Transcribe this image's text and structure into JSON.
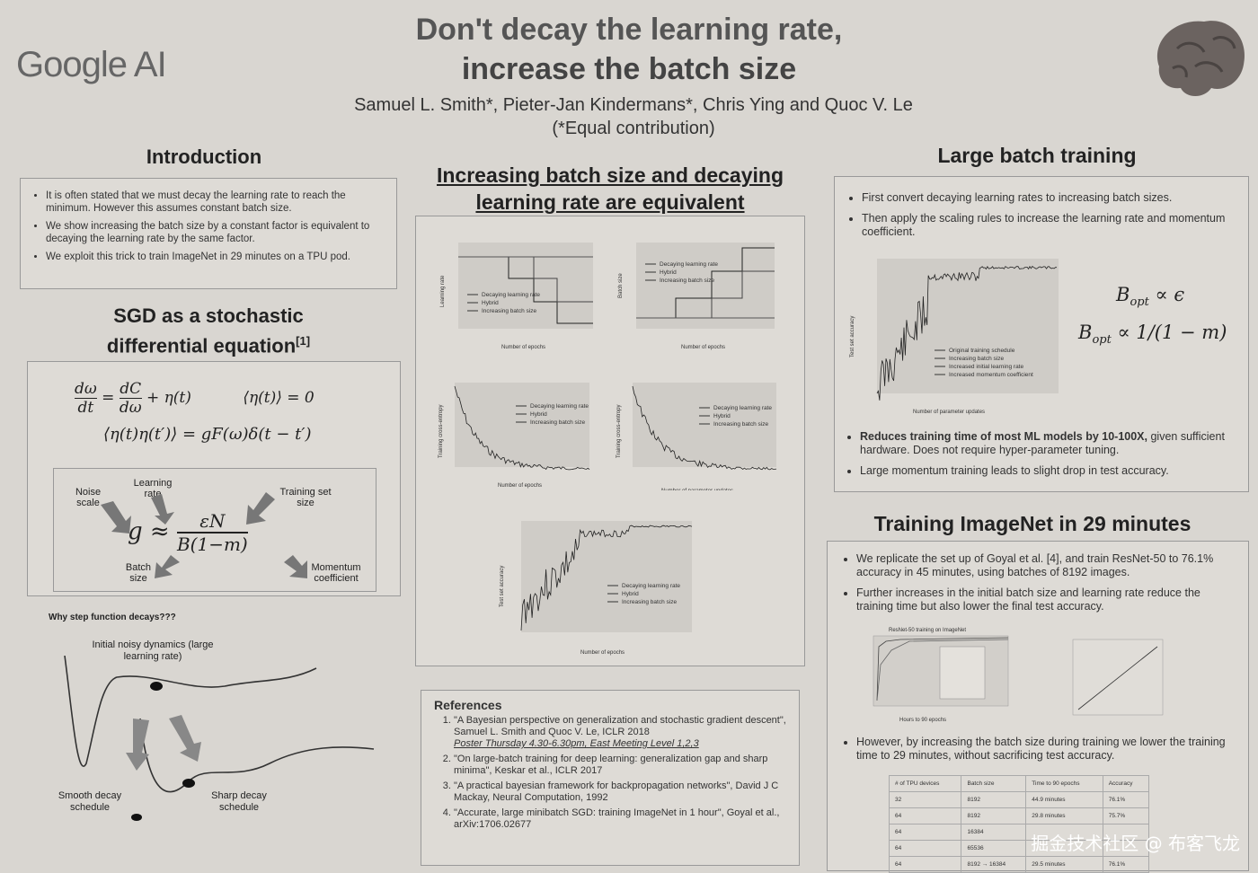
{
  "logo": "Google AI",
  "title_line1": "Don't decay the learning rate,",
  "title_line2": "increase the batch size",
  "authors": "Samuel L. Smith*, Pieter-Jan Kindermans*, Chris Ying and Quoc V. Le",
  "equal_contribution": "(*Equal contribution)",
  "intro": {
    "heading": "Introduction",
    "bullets": [
      "It is often stated that we must decay the learning rate to reach the minimum. However this assumes constant batch size.",
      "We show increasing the batch size by a constant factor is equivalent to decaying the learning rate by the same factor.",
      "We exploit this trick to train ImageNet in 29 minutes on a TPU pod."
    ]
  },
  "sgd": {
    "heading_line1": "SGD as a stochastic",
    "heading_line2": "differential equation",
    "heading_ref": "[1]",
    "labels": {
      "noise_scale": "Noise scale",
      "learning_rate": "Learning rate",
      "training_set_size": "Training set size",
      "batch_size": "Batch size",
      "momentum": "Momentum coefficient"
    },
    "why": "Why step function decays???",
    "noisy": "Initial noisy dynamics (large learning rate)",
    "smooth": "Smooth decay schedule",
    "sharp": "Sharp decay schedule"
  },
  "middle": {
    "heading_line1": "Increasing batch size and decaying",
    "heading_line2": "learning rate are equivalent",
    "legend": [
      "Decaying learning rate",
      "Hybrid",
      "Increasing batch size"
    ],
    "ylabels": [
      "Learning rate",
      "Batch size",
      "Training cross-entropy",
      "Training cross-entropy",
      "Test set accuracy"
    ],
    "xlabels": [
      "Number of epochs",
      "Number of epochs",
      "Number of epochs",
      "Number of parameter updates",
      "Number of epochs"
    ]
  },
  "references": {
    "heading": "References",
    "items": [
      "\"A Bayesian perspective on generalization and stochastic gradient descent\", Samuel L. Smith and Quoc V. Le, ICLR 2018",
      "\"On large-batch training for deep learning: generalization gap and sharp minima\", Keskar et al., ICLR 2017",
      "\"A practical bayesian framework for backpropagation networks\", David J C Mackay, Neural Computation, 1992",
      "\"Accurate, large minibatch SGD: training ImageNet in 1 hour\", Goyal et al., arXiv:1706.02677"
    ],
    "poster": "Poster Thursday 4.30-6.30pm, East Meeting Level 1,2,3"
  },
  "large_batch": {
    "heading": "Large batch training",
    "bullets": [
      "First convert decaying learning rates to increasing batch sizes.",
      "Then apply the scaling rules to increase the learning rate and momentum coefficient."
    ],
    "legend": [
      "Original training schedule",
      "Increasing batch size",
      "Increased initial learning rate",
      "Increased momentum coefficient"
    ],
    "ylabel": "Test set accuracy",
    "xlabel": "Number of parameter updates",
    "bullets2_bold": "Reduces training time of most ML models by 10-100X,",
    "bullets2_rest": " given sufficient hardware. Does not require hyper-parameter tuning.",
    "bullet3": "Large momentum training leads to slight drop in test accuracy."
  },
  "imagenet": {
    "heading": "Training ImageNet in 29 minutes",
    "bullets": [
      "We replicate the set up of Goyal et al. [4], and train ResNet-50 to 76.1% accuracy in 45 minutes, using batches of 8192 images.",
      "Further increases in the initial batch size and learning rate reduce the training time but also lower the final test accuracy."
    ],
    "chart_title": "ResNet-50 training on ImageNet",
    "chart_xlabel": "Hours to 90 epochs",
    "bullet3": "However, by increasing the batch size during training we lower the training time to 29 minutes, without sacrificing test accuracy.",
    "table_header": [
      "# of TPU devices",
      "Batch size",
      "Time to 90 epochs",
      "Accuracy"
    ],
    "table_rows": [
      [
        "32",
        "8192",
        "44.9 minutes",
        "76.1%"
      ],
      [
        "64",
        "8192",
        "29.8 minutes",
        "75.7%"
      ],
      [
        "64",
        "16384",
        "",
        ""
      ],
      [
        "64",
        "65536",
        "",
        ""
      ],
      [
        "64",
        "8192 → 16384",
        "29.5 minutes",
        "76.1%"
      ]
    ]
  },
  "watermark": "掘金技术社区 @ 布客飞龙"
}
